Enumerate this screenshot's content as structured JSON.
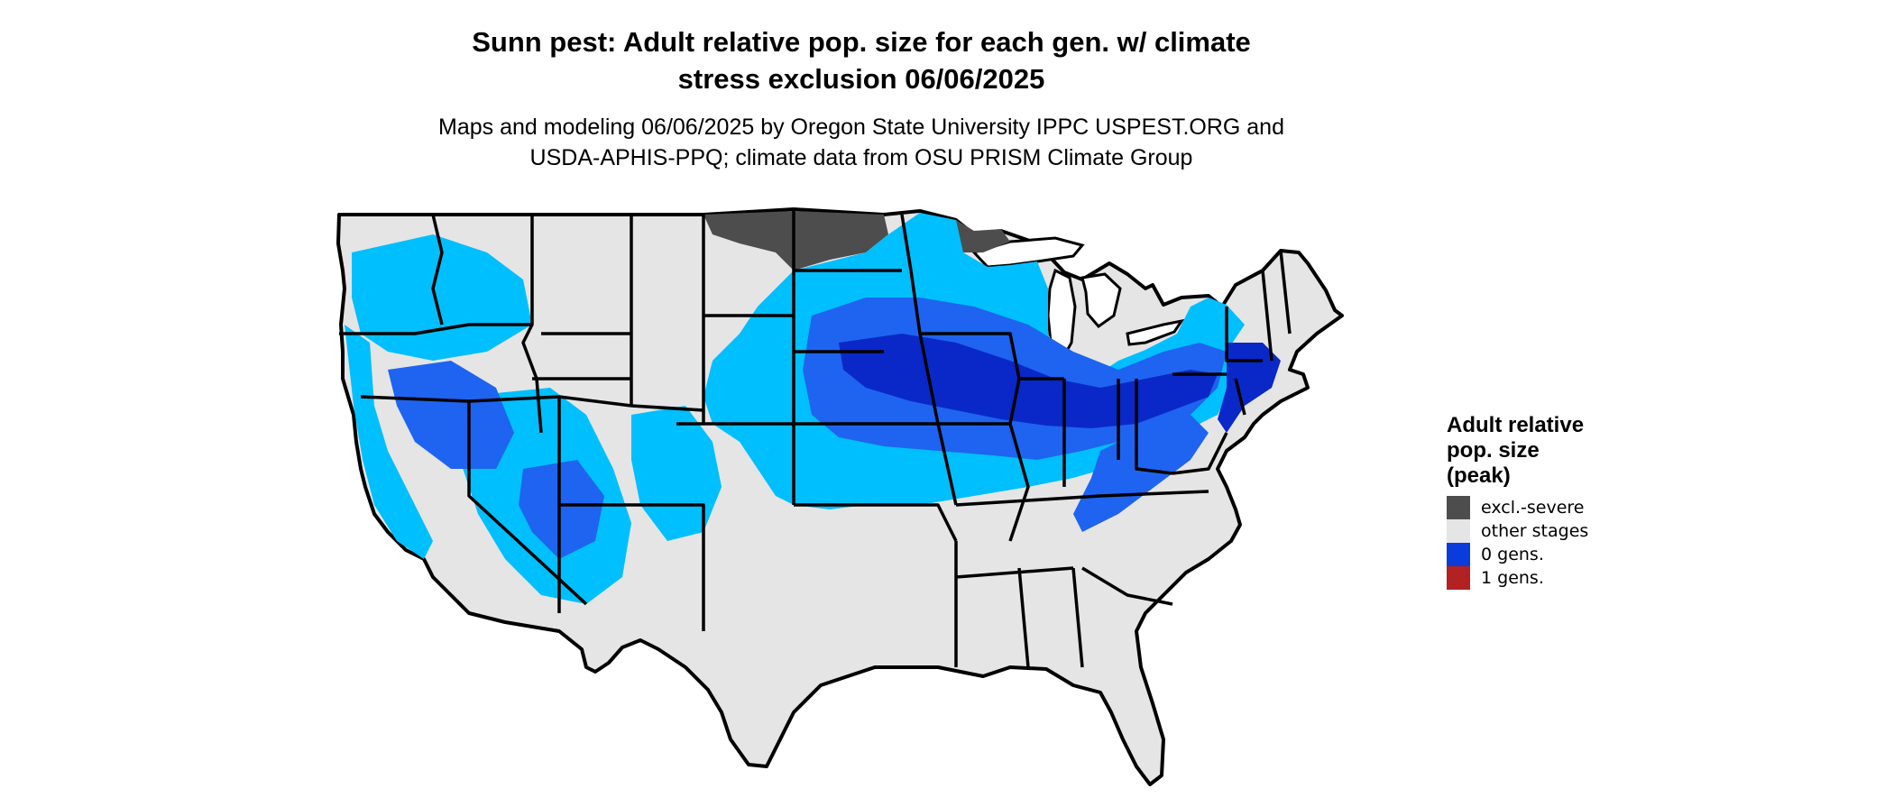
{
  "title": {
    "line1": "Sunn pest: Adult relative pop. size for each gen. w/ climate",
    "line2": "stress exclusion 06/06/2025"
  },
  "subtitle": {
    "line1": "Maps and modeling 06/06/2025 by Oregon State University IPPC USPEST.ORG and",
    "line2": "USDA-APHIS-PPQ; climate data from OSU PRISM Climate Group"
  },
  "legend": {
    "title_lines": [
      "Adult relative",
      "pop. size",
      "(peak)"
    ],
    "items": [
      {
        "label": "excl.-severe",
        "color": "#4d4d4d"
      },
      {
        "label": "other stages",
        "color": "#e5e5e5"
      },
      {
        "label": "0 gens.",
        "color": "#0a3cdc"
      },
      {
        "label": "1 gens.",
        "color": "#b22222"
      }
    ]
  },
  "colors": {
    "land": "#e5e5e5",
    "excluded": "#4d4d4d",
    "light_blue": "#00bfff",
    "mid_blue": "#1e64f0",
    "dark_blue": "#0a28c8",
    "borders": "#000000"
  }
}
